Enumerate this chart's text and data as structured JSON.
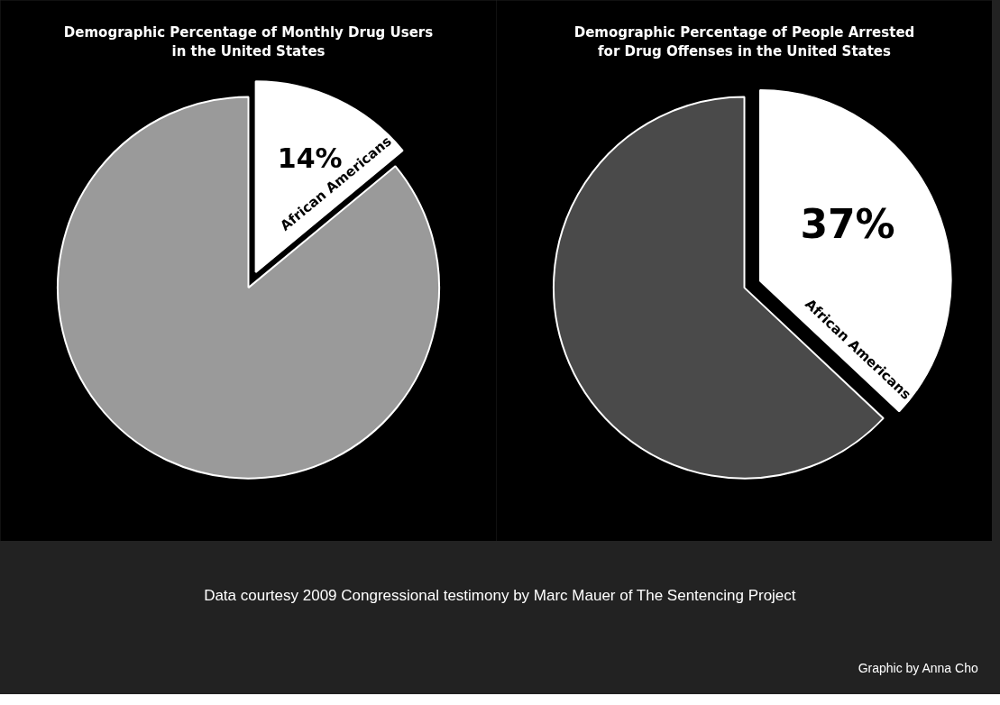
{
  "chart_data": [
    {
      "type": "pie",
      "title": "Demographic Percentage of Monthly Drug Users in the United States",
      "categories": [
        "African Americans",
        null
      ],
      "values": [
        14,
        86
      ],
      "colors": [
        "#ffffff",
        "#9a9a9a"
      ],
      "value_labels": [
        "14%",
        null
      ],
      "annotations": [
        "Data courtesy 2009 Congressional testimony by Marc Mauer of The Sentencing Project",
        "Graphic by Anna Cho"
      ]
    },
    {
      "type": "pie",
      "title": "Demographic Percentage of People Arrested for Drug Offenses in the United States",
      "categories": [
        "African Americans",
        null
      ],
      "values": [
        37,
        63
      ],
      "colors": [
        "#ffffff",
        "#4a4a4a"
      ],
      "value_labels": [
        "37%",
        null
      ]
    }
  ]
}
